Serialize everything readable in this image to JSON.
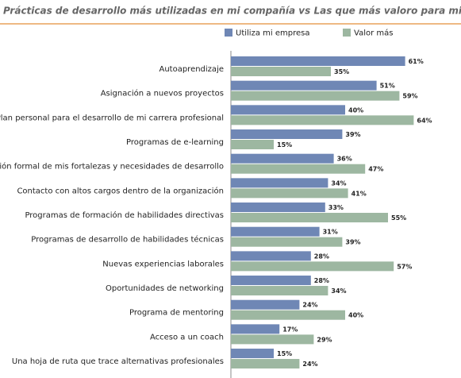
{
  "chart_data": {
    "type": "bar",
    "orientation": "horizontal",
    "title": "Prácticas de desarrollo más utilizadas en mi compañía vs Las que más valoro para mi desarrollo",
    "categories": [
      "Autoaprendizaje",
      "Asignación a nuevos proyectos",
      "Plan personal para el desarrollo de mi carrera profesional",
      "Programas de e-learning",
      "Evaluación formal de mis fortalezas y necesidades de desarrollo",
      "Contacto con altos cargos dentro de la organización",
      "Programas de formación de habilidades directivas",
      "Programas de desarrollo de habilidades técnicas",
      "Nuevas experiencias laborales",
      "Oportunidades de networking",
      "Programa de mentoring",
      "Acceso a un coach",
      "Una hoja de ruta que trace alternativas profesionales"
    ],
    "series": [
      {
        "name": "Utiliza mi empresa",
        "color": "#6f87b5",
        "values": [
          61,
          51,
          40,
          39,
          36,
          34,
          33,
          31,
          28,
          28,
          24,
          17,
          15
        ],
        "value_labels": [
          "61%",
          "51%",
          "40%",
          "39%",
          "36%",
          "34%",
          "33%",
          "31%",
          "28%",
          "28%",
          "24%",
          "17%",
          "15%"
        ]
      },
      {
        "name": "Valor más",
        "color": "#9db7a1",
        "values": [
          35,
          59,
          64,
          15,
          47,
          41,
          55,
          39,
          57,
          34,
          40,
          29,
          24
        ],
        "value_labels": [
          "35%",
          "59%",
          "64%",
          "15%",
          "47%",
          "41%",
          "55%",
          "39%",
          "57%",
          "34%",
          "40%",
          "29%",
          "24%"
        ]
      }
    ]
  }
}
